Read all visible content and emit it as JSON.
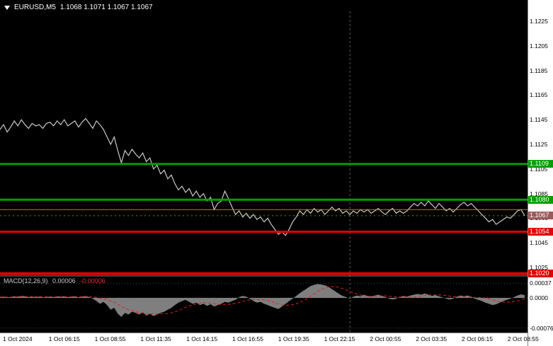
{
  "header": {
    "symbol_timeframe": "EURUSD,M5",
    "ohlc": "1.1068 1.1071 1.1067 1.1067"
  },
  "chart_data": {
    "type": "line",
    "symbol": "EURUSD",
    "timeframe": "M5",
    "background": "#000000",
    "line_color": "#c9c9c9",
    "x_labels": [
      "1 Oct 2024",
      "1 Oct 06:15",
      "1 Oct 08:55",
      "1 Oct 11:35",
      "1 Oct 14:15",
      "1 Oct 16:55",
      "1 Oct 19:35",
      "1 Oct 22:15",
      "2 Oct 00:55",
      "2 Oct 03:35",
      "2 Oct 06:15",
      "2 Oct 08:55"
    ],
    "y_ticks": [
      "1.1225",
      "1.1205",
      "1.1185",
      "1.1165",
      "1.1145",
      "1.1125",
      "1.1105",
      "1.1085",
      "1.1065",
      "1.1045",
      "1.1025"
    ],
    "y_range": [
      1.1225,
      1.102
    ],
    "prices": [
      1.1137,
      1.1141,
      1.1135,
      1.1139,
      1.1144,
      1.114,
      1.1145,
      1.1141,
      1.1138,
      1.1142,
      1.114,
      1.1141,
      1.1138,
      1.1142,
      1.1143,
      1.114,
      1.1144,
      1.1141,
      1.1145,
      1.114,
      1.1142,
      1.1144,
      1.1139,
      1.1143,
      1.1146,
      1.1142,
      1.1138,
      1.1144,
      1.1141,
      1.1137,
      1.1131,
      1.1125,
      1.1131,
      1.112,
      1.111,
      1.112,
      1.1116,
      1.1121,
      1.1117,
      1.1114,
      1.1118,
      1.1111,
      1.1114,
      1.1105,
      1.1108,
      1.1101,
      1.1104,
      1.1097,
      1.11,
      1.1093,
      1.1088,
      1.1091,
      1.1086,
      1.1089,
      1.1083,
      1.1087,
      1.1082,
      1.1085,
      1.1079,
      1.1082,
      1.1072,
      1.1077,
      1.1079,
      1.1087,
      1.1081,
      1.1074,
      1.1068,
      1.1071,
      1.1066,
      1.1069,
      1.1065,
      1.1068,
      1.1064,
      1.1066,
      1.1062,
      1.1065,
      1.106,
      1.1056,
      1.1052,
      1.1054,
      1.1051,
      1.1056,
      1.1062,
      1.1066,
      1.1071,
      1.1068,
      1.1072,
      1.1069,
      1.1073,
      1.107,
      1.1072,
      1.1068,
      1.1071,
      1.1074,
      1.1071,
      1.1073,
      1.1069,
      1.1071,
      1.1068,
      1.1071,
      1.1069,
      1.1072,
      1.107,
      1.1072,
      1.1069,
      1.1071,
      1.1073,
      1.107,
      1.1068,
      1.1071,
      1.1073,
      1.1069,
      1.1071,
      1.1069,
      1.1071,
      1.1074,
      1.1077,
      1.1075,
      1.1078,
      1.1075,
      1.1079,
      1.1076,
      1.1073,
      1.1077,
      1.1074,
      1.1071,
      1.1073,
      1.107,
      1.1073,
      1.1076,
      1.1078,
      1.1075,
      1.1077,
      1.1074,
      1.1071,
      1.1068,
      1.1065,
      1.1062,
      1.1064,
      1.106,
      1.1062,
      1.1064,
      1.1066,
      1.1065,
      1.1068,
      1.1071,
      1.1072,
      1.1067
    ],
    "levels": [
      {
        "price": 1.1109,
        "label": "1.1109",
        "color": "#00a000",
        "width": 3
      },
      {
        "price": 1.108,
        "label": "1.1080",
        "color": "#00a000",
        "width": 3
      },
      {
        "price": 1.1072,
        "label": "",
        "color": "#b8860b",
        "width": 1
      },
      {
        "price": 1.1054,
        "label": "1.1054",
        "color": "#e00000",
        "width": 3
      },
      {
        "price": 1.102,
        "label": "1.1020",
        "color": "#e00000",
        "width": 4
      }
    ],
    "current_price": {
      "price": 1.1067,
      "label": "1.1067",
      "color": "#9c5a5a"
    },
    "separator_fraction": 0.667,
    "macd": {
      "label": "MACD(12,26,9)",
      "main_value": "0.00006",
      "signal_value": "-0.00006",
      "histogram_color": "#7f7f7f",
      "signal_color": "#e02020",
      "ticks": [
        {
          "label": "0.00037",
          "value": 0.00037
        },
        {
          "label": "0.0000",
          "value": 0.0
        },
        {
          "label": "-0.00076",
          "value": -0.00076
        }
      ],
      "histogram_1e5": [
        2,
        3,
        1,
        2,
        4,
        3,
        5,
        4,
        2,
        3,
        2,
        3,
        1,
        2,
        3,
        2,
        4,
        3,
        4,
        2,
        3,
        4,
        1,
        3,
        5,
        2,
        -2,
        -8,
        -15,
        -10,
        -18,
        -30,
        -25,
        -40,
        -48,
        -38,
        -42,
        -35,
        -38,
        -42,
        -36,
        -45,
        -40,
        -46,
        -42,
        -38,
        -35,
        -30,
        -25,
        -18,
        -12,
        -8,
        -5,
        -10,
        -15,
        -12,
        -18,
        -15,
        -20,
        -16,
        -22,
        -18,
        -15,
        -10,
        -12,
        -8,
        -5,
        2,
        5,
        3,
        -2,
        -8,
        -12,
        -10,
        -15,
        -18,
        -22,
        -25,
        -28,
        -22,
        -15,
        -8,
        -2,
        5,
        12,
        18,
        24,
        30,
        33,
        35,
        34,
        32,
        28,
        22,
        16,
        10,
        5,
        2,
        -2,
        3,
        6,
        4,
        8,
        5,
        3,
        6,
        8,
        5,
        2,
        -2,
        -4,
        -2,
        2,
        5,
        3,
        6,
        8,
        10,
        8,
        11,
        8,
        5,
        7,
        4,
        1,
        -2,
        -4,
        -2,
        3,
        6,
        4,
        6,
        3,
        -2,
        -5,
        -8,
        -12,
        -15,
        -18,
        -16,
        -12,
        -8,
        -5,
        -2,
        2,
        6,
        9,
        7
      ]
    }
  }
}
